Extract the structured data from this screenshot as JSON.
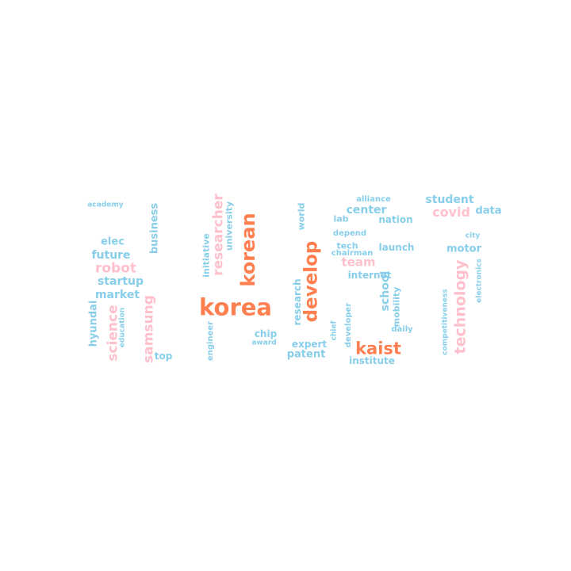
{
  "palette": {
    "orange": "#ff7f50",
    "pink": "#ffc0cb",
    "blue": "#87ceeb"
  },
  "words": [
    {
      "text": "korea",
      "color": "orange",
      "weight": 29,
      "vertical": false
    },
    {
      "text": "korean",
      "color": "orange",
      "weight": 24,
      "vertical": true
    },
    {
      "text": "develop",
      "color": "orange",
      "weight": 23,
      "vertical": true
    },
    {
      "text": "kaist",
      "color": "orange",
      "weight": 21,
      "vertical": false
    },
    {
      "text": "technology",
      "color": "pink",
      "weight": 19,
      "vertical": true
    },
    {
      "text": "researcher",
      "color": "pink",
      "weight": 17,
      "vertical": true
    },
    {
      "text": "science",
      "color": "pink",
      "weight": 17,
      "vertical": true
    },
    {
      "text": "samsung",
      "color": "pink",
      "weight": 17,
      "vertical": true
    },
    {
      "text": "robot",
      "color": "pink",
      "weight": 17,
      "vertical": false
    },
    {
      "text": "covid",
      "color": "pink",
      "weight": 16,
      "vertical": false
    },
    {
      "text": "team",
      "color": "pink",
      "weight": 15,
      "vertical": false
    },
    {
      "text": "school",
      "color": "blue",
      "weight": 14,
      "vertical": true
    },
    {
      "text": "student",
      "color": "blue",
      "weight": 14,
      "vertical": false
    },
    {
      "text": "center",
      "color": "blue",
      "weight": 14,
      "vertical": false
    },
    {
      "text": "future",
      "color": "blue",
      "weight": 14,
      "vertical": false
    },
    {
      "text": "startup",
      "color": "blue",
      "weight": 14,
      "vertical": false
    },
    {
      "text": "market",
      "color": "blue",
      "weight": 14,
      "vertical": false
    },
    {
      "text": "elec",
      "color": "blue",
      "weight": 13,
      "vertical": false
    },
    {
      "text": "business",
      "color": "blue",
      "weight": 13,
      "vertical": true
    },
    {
      "text": "data",
      "color": "blue",
      "weight": 13,
      "vertical": false
    },
    {
      "text": "motor",
      "color": "blue",
      "weight": 13,
      "vertical": false
    },
    {
      "text": "hyundai",
      "color": "blue",
      "weight": 13,
      "vertical": true
    },
    {
      "text": "patent",
      "color": "blue",
      "weight": 13,
      "vertical": false
    },
    {
      "text": "institute",
      "color": "blue",
      "weight": 12,
      "vertical": false
    },
    {
      "text": "expert",
      "color": "blue",
      "weight": 12,
      "vertical": false
    },
    {
      "text": "chip",
      "color": "blue",
      "weight": 12,
      "vertical": false
    },
    {
      "text": "nation",
      "color": "blue",
      "weight": 12,
      "vertical": false
    },
    {
      "text": "launch",
      "color": "blue",
      "weight": 12,
      "vertical": false
    },
    {
      "text": "internet",
      "color": "blue",
      "weight": 12,
      "vertical": false
    },
    {
      "text": "research",
      "color": "blue",
      "weight": 12,
      "vertical": true
    },
    {
      "text": "top",
      "color": "blue",
      "weight": 12,
      "vertical": false
    },
    {
      "text": "university",
      "color": "blue",
      "weight": 11,
      "vertical": true
    },
    {
      "text": "lab",
      "color": "blue",
      "weight": 11,
      "vertical": false
    },
    {
      "text": "tech",
      "color": "blue",
      "weight": 11,
      "vertical": false
    },
    {
      "text": "world",
      "color": "blue",
      "weight": 11,
      "vertical": true
    },
    {
      "text": "mobility",
      "color": "blue",
      "weight": 11,
      "vertical": true
    },
    {
      "text": "initiative",
      "color": "blue",
      "weight": 11,
      "vertical": true
    },
    {
      "text": "engineer",
      "color": "blue",
      "weight": 10,
      "vertical": true
    },
    {
      "text": "alliance",
      "color": "blue",
      "weight": 10,
      "vertical": false
    },
    {
      "text": "depend",
      "color": "blue",
      "weight": 10,
      "vertical": false
    },
    {
      "text": "chairman",
      "color": "blue",
      "weight": 10,
      "vertical": false
    },
    {
      "text": "developer",
      "color": "blue",
      "weight": 10,
      "vertical": true
    },
    {
      "text": "daily",
      "color": "blue",
      "weight": 10,
      "vertical": false
    },
    {
      "text": "competitiveness",
      "color": "blue",
      "weight": 9,
      "vertical": true
    },
    {
      "text": "city",
      "color": "blue",
      "weight": 9,
      "vertical": false
    },
    {
      "text": "electronics",
      "color": "blue",
      "weight": 9,
      "vertical": true
    },
    {
      "text": "academy",
      "color": "blue",
      "weight": 9,
      "vertical": false
    },
    {
      "text": "education",
      "color": "blue",
      "weight": 9,
      "vertical": true
    },
    {
      "text": "award",
      "color": "blue",
      "weight": 9,
      "vertical": false
    },
    {
      "text": "chief",
      "color": "blue",
      "weight": 9,
      "vertical": true
    }
  ]
}
